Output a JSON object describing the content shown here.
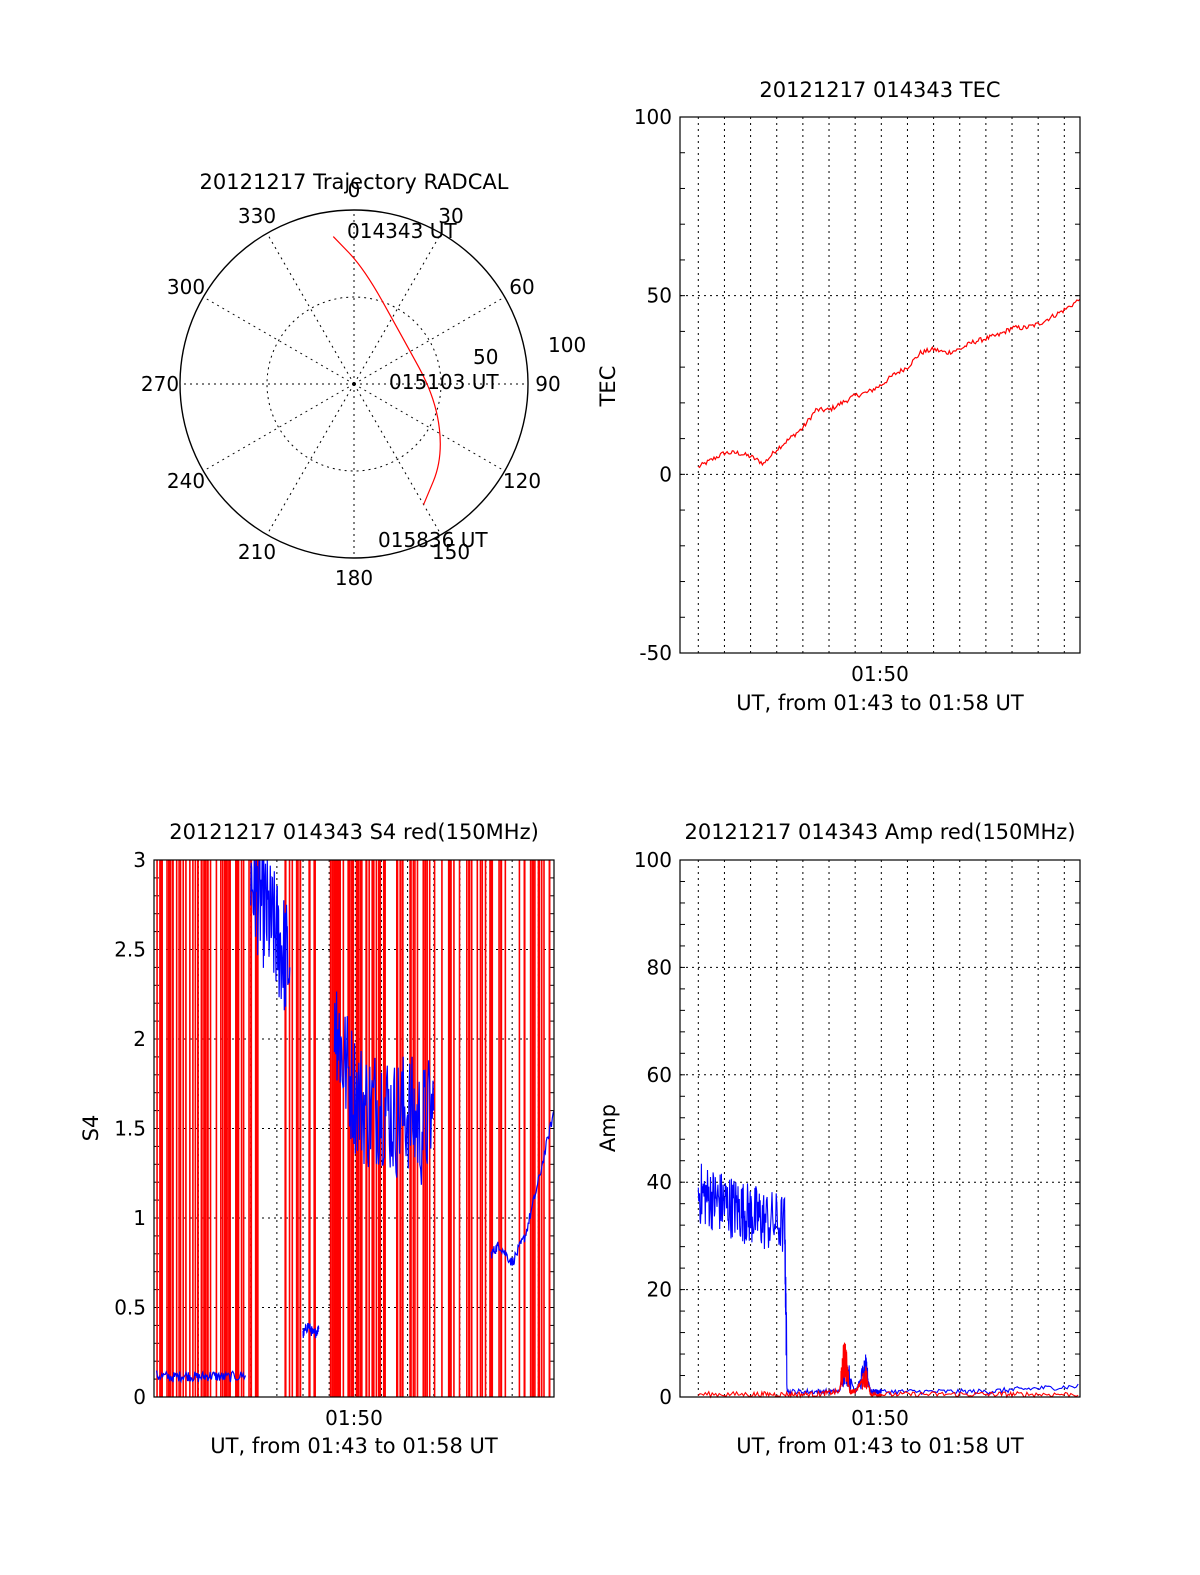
{
  "colors": {
    "red": "#ff0000",
    "blue": "#0000ff",
    "axis": "#000000"
  },
  "chart_data": [
    {
      "id": "trajectory",
      "type": "polar",
      "title": "20121217 Trajectory RADCAL",
      "azimuth_labels": [
        "0",
        "30",
        "60",
        "90",
        "120",
        "150",
        "180",
        "210",
        "240",
        "270",
        "300",
        "330"
      ],
      "radial_labels": [
        "50",
        "100"
      ],
      "grid": true,
      "track": [
        {
          "az": 352,
          "el": 13
        },
        {
          "az": 5,
          "el": 30
        },
        {
          "az": 45,
          "el": 55
        },
        {
          "az": 100,
          "el": 47
        },
        {
          "az": 130,
          "el": 30
        },
        {
          "az": 150,
          "el": 18
        }
      ],
      "annotations": [
        {
          "text": "014343 UT"
        },
        {
          "text": "015103 UT"
        },
        {
          "text": "015836 UT"
        }
      ]
    },
    {
      "id": "tec",
      "type": "line",
      "title": "20121217 014343 TEC",
      "xlabel": "UT, from 01:43 to 01:58 UT",
      "ylabel": "TEC",
      "x_tick_labels": [
        "01:50"
      ],
      "x_ticks_min": [
        50
      ],
      "xlim_min": [
        43.3,
        58.6
      ],
      "ylim": [
        -50,
        100
      ],
      "y_ticks": [
        -50,
        0,
        50,
        100
      ],
      "grid": true,
      "series": [
        {
          "color": "red",
          "x": [
            44.0,
            44.5,
            45.0,
            45.5,
            46.0,
            46.5,
            47.0,
            47.5,
            48.0,
            48.5,
            49.0,
            49.5,
            50.0,
            50.5,
            51.0,
            51.5,
            52.0,
            52.5,
            53.0,
            53.5,
            54.0,
            54.5,
            55.0,
            55.5,
            56.0,
            56.5,
            57.0,
            57.5,
            58.0,
            58.6
          ],
          "y": [
            2,
            4,
            6,
            6,
            5,
            3,
            7,
            10,
            13,
            18,
            18,
            20,
            22,
            23,
            25,
            28,
            30,
            34,
            35,
            34,
            35,
            37,
            38,
            39,
            41,
            41,
            42,
            44,
            46,
            49
          ]
        }
      ]
    },
    {
      "id": "s4",
      "type": "line",
      "title": "20121217 014343 S4 red(150MHz)",
      "xlabel": "UT, from 01:43 to 01:58 UT",
      "ylabel": "S4",
      "x_tick_labels": [
        "01:50"
      ],
      "x_ticks_min": [
        50
      ],
      "xlim_min": [
        43.3,
        58.6
      ],
      "ylim": [
        0,
        3
      ],
      "y_ticks": [
        0,
        0.5,
        1,
        1.5,
        2,
        2.5,
        3
      ],
      "y_tick_labels": [
        "0",
        "0.5",
        "1",
        "1.5",
        "2",
        "2.5",
        "3"
      ],
      "grid": true,
      "red_spike_bands": [
        {
          "x0": 43.4,
          "x1": 47.3,
          "count": 60
        },
        {
          "x0": 48.3,
          "x1": 49.0,
          "count": 8
        },
        {
          "x0": 49.2,
          "x1": 49.6,
          "count": 5
        },
        {
          "x0": 50.0,
          "x1": 54.0,
          "count": 55
        },
        {
          "x0": 54.0,
          "x1": 58.6,
          "count": 40
        }
      ],
      "series": [
        {
          "color": "blue",
          "segments": [
            {
              "x": [
                43.4,
                44.0,
                44.5,
                45.0,
                45.5,
                46.0,
                46.8
              ],
              "y": [
                0.12,
                0.11,
                0.12,
                0.11,
                0.12,
                0.11,
                0.12
              ]
            },
            {
              "x": [
                47.0,
                47.3,
                47.6,
                47.9,
                48.2,
                48.5
              ],
              "y": [
                2.9,
                2.8,
                2.7,
                2.6,
                2.5,
                2.4
              ]
            },
            {
              "x": [
                49.0,
                49.2,
                49.4,
                49.6
              ],
              "y": [
                0.35,
                0.4,
                0.35,
                0.38
              ]
            },
            {
              "x": [
                50.2,
                50.5,
                51.0,
                51.5,
                52.0,
                52.5,
                53.0,
                53.5,
                54.0
              ],
              "y": [
                2.2,
                1.9,
                1.7,
                1.6,
                1.65,
                1.55,
                1.6,
                1.5,
                1.6
              ]
            },
            {
              "x": [
                56.2,
                56.5,
                57.0,
                57.5,
                58.0,
                58.6
              ],
              "y": [
                0.8,
                0.85,
                0.75,
                0.9,
                1.2,
                1.6
              ]
            }
          ]
        }
      ]
    },
    {
      "id": "amp",
      "type": "line",
      "title": "20121217 014343 Amp red(150MHz)",
      "xlabel": "UT, from 01:43 to 01:58 UT",
      "ylabel": "Amp",
      "x_tick_labels": [
        "01:50"
      ],
      "x_ticks_min": [
        50
      ],
      "xlim_min": [
        43.3,
        58.6
      ],
      "ylim": [
        0,
        100
      ],
      "y_ticks": [
        0,
        20,
        40,
        60,
        80,
        100
      ],
      "grid": true,
      "series": [
        {
          "color": "blue",
          "x": [
            44.0,
            44.5,
            45.0,
            45.5,
            46.0,
            46.5,
            47.3,
            47.4,
            48.5,
            49.4,
            49.6,
            50.0,
            50.4,
            50.6,
            51.0,
            53.0,
            55.0,
            56.5,
            58.6
          ],
          "y": [
            38,
            37,
            36,
            35,
            34,
            33,
            32,
            1,
            1,
            1,
            6,
            1,
            5,
            1,
            1,
            1,
            1,
            1.5,
            2
          ]
        },
        {
          "color": "red",
          "x": [
            44.0,
            46.0,
            47.3,
            48.5,
            49.4,
            49.6,
            49.8,
            50.0,
            50.4,
            50.6,
            51.0,
            53.0,
            55.0,
            56.5,
            58.6
          ],
          "y": [
            0.5,
            0.5,
            0.5,
            0.5,
            1,
            8,
            1,
            1,
            4,
            0.5,
            0.5,
            0.5,
            0.5,
            0.5,
            0.5
          ]
        }
      ]
    }
  ]
}
